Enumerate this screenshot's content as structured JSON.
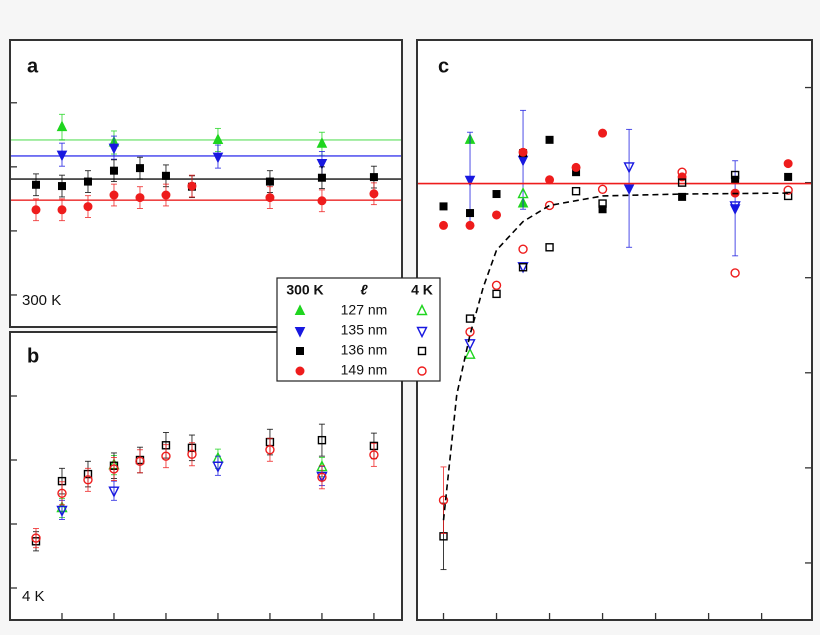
{
  "legend": {
    "header": [
      "300 K",
      "ℓ",
      "4 K"
    ],
    "rows": [
      {
        "label": "127 nm",
        "color": "#1fd51f",
        "marker": "triangle-up"
      },
      {
        "label": "135 nm",
        "color": "#1818e0",
        "marker": "triangle-down"
      },
      {
        "label": "136 nm",
        "color": "#000000",
        "marker": "square"
      },
      {
        "label": "149 nm",
        "color": "#ee1c1c",
        "marker": "circle"
      }
    ]
  },
  "chart_data": [
    {
      "type": "scatter",
      "title": "a",
      "annotation": "300 K",
      "xlim": [
        0,
        7.54
      ],
      "ylim": [
        0,
        4.48
      ],
      "yticks": [
        0.5,
        1.5,
        2.5,
        3.5
      ],
      "ytick_side": "left",
      "series": [
        {
          "color": "#1fd51f",
          "marker": "triangle-up",
          "filled": true,
          "level": 2.92,
          "level_color": "#8fe98f",
          "x": [
            1,
            2,
            4,
            6
          ],
          "values": [
            3.12,
            2.88,
            2.92,
            2.86
          ],
          "errors": [
            0.2,
            0.18,
            0.18,
            0.18
          ]
        },
        {
          "color": "#1818e0",
          "marker": "triangle-down",
          "filled": true,
          "level": 2.67,
          "level_color": "#5a5af0",
          "x": [
            1,
            2,
            4,
            6
          ],
          "values": [
            2.69,
            2.8,
            2.66,
            2.56
          ],
          "errors": [
            0.18,
            0.18,
            0.18,
            0.18
          ]
        },
        {
          "color": "#000000",
          "marker": "square",
          "filled": true,
          "level": 2.31,
          "level_color": "#333333",
          "x": [
            0.5,
            1,
            1.5,
            2,
            2.5,
            3,
            3.5,
            5,
            6,
            7
          ],
          "values": [
            2.22,
            2.2,
            2.27,
            2.44,
            2.48,
            2.36,
            2.19,
            2.27,
            2.33,
            2.34
          ],
          "errors": [
            0.17,
            0.17,
            0.17,
            0.17,
            0.17,
            0.17,
            0.17,
            0.17,
            0.17,
            0.17
          ]
        },
        {
          "color": "#ee1c1c",
          "marker": "circle",
          "filled": true,
          "level": 1.98,
          "level_color": "#ee4444",
          "x": [
            0.5,
            1,
            1.5,
            2,
            2.5,
            3,
            3.5,
            5,
            6,
            7
          ],
          "values": [
            1.83,
            1.83,
            1.88,
            2.06,
            2.02,
            2.06,
            2.2,
            2.02,
            1.97,
            2.08
          ],
          "errors": [
            0.17,
            0.17,
            0.17,
            0.17,
            0.17,
            0.17,
            0.17,
            0.17,
            0.17,
            0.17
          ]
        }
      ]
    },
    {
      "type": "scatter",
      "title": "b",
      "annotation": "4 K",
      "xlim": [
        0,
        7.54
      ],
      "ylim": [
        0,
        4.5
      ],
      "xticks": [
        1,
        2,
        3,
        4,
        5,
        6,
        7
      ],
      "yticks": [
        0.5,
        1.5,
        2.5,
        3.5
      ],
      "ytick_side": "left",
      "series": [
        {
          "color": "#1fd51f",
          "marker": "triangle-up",
          "filled": false,
          "x": [
            1,
            2,
            4,
            6
          ],
          "values": [
            1.75,
            2.42,
            2.52,
            2.39
          ],
          "errors": [
            0.15,
            0.15,
            0.15,
            0.15
          ]
        },
        {
          "color": "#1818e0",
          "marker": "triangle-down",
          "filled": false,
          "x": [
            1,
            2,
            4,
            6
          ],
          "values": [
            1.72,
            2.02,
            2.41,
            2.25
          ],
          "errors": [
            0.15,
            0.15,
            0.15,
            0.15
          ]
        },
        {
          "color": "#000000",
          "marker": "square",
          "filled": false,
          "x": [
            0.5,
            1,
            1.5,
            2,
            2.5,
            3,
            3.5,
            5,
            6,
            7
          ],
          "values": [
            1.23,
            2.17,
            2.28,
            2.41,
            2.5,
            2.73,
            2.69,
            2.78,
            2.81,
            2.72
          ],
          "errors": [
            0.15,
            0.2,
            0.2,
            0.2,
            0.2,
            0.2,
            0.2,
            0.2,
            0.25,
            0.2
          ]
        },
        {
          "color": "#ee1c1c",
          "marker": "circle",
          "filled": false,
          "x": [
            0.5,
            1,
            1.5,
            2,
            2.5,
            3,
            3.5,
            5,
            6,
            7
          ],
          "values": [
            1.28,
            1.98,
            2.19,
            2.36,
            2.48,
            2.56,
            2.59,
            2.66,
            2.23,
            2.58
          ],
          "errors": [
            0.15,
            0.18,
            0.18,
            0.18,
            0.18,
            0.18,
            0.18,
            0.18,
            0.18,
            0.18
          ]
        }
      ]
    },
    {
      "type": "scatter",
      "title": "c",
      "xlim": [
        0,
        7.45
      ],
      "ylim": [
        -0.1,
        6.0
      ],
      "xticks": [
        0.5,
        1.5,
        2.5,
        3.5,
        4.5,
        5.5,
        6.5
      ],
      "yticks": [
        0.5,
        1.5,
        2.5,
        3.5,
        4.5,
        5.5
      ],
      "ytick_side": "right",
      "series": [
        {
          "color": "#1fd51f",
          "marker": "triangle-up",
          "filled": true,
          "x": [
            1,
            2
          ],
          "values": [
            4.95,
            4.28
          ],
          "errors": [
            null,
            null
          ]
        },
        {
          "color": "#1818e0",
          "marker": "triangle-down",
          "filled": true,
          "x": [
            1,
            2,
            4,
            6
          ],
          "values": [
            4.53,
            4.74,
            4.44,
            4.23
          ],
          "errors": [
            0.5,
            0.52,
            0.62,
            0.5
          ]
        },
        {
          "color": "#000000",
          "marker": "square",
          "filled": true,
          "x": [
            0.5,
            1,
            1.5,
            2,
            2.5,
            3,
            3.5,
            5,
            6,
            7
          ],
          "values": [
            4.25,
            4.18,
            4.38,
            4.81,
            4.95,
            4.61,
            4.22,
            4.35,
            4.53,
            4.56
          ],
          "errors": [
            null,
            null,
            null,
            null,
            null,
            null,
            null,
            null,
            null,
            null
          ]
        },
        {
          "color": "#ee1c1c",
          "marker": "circle",
          "filled": true,
          "level": 4.49,
          "level_color": "#ee1c1c",
          "x": [
            0.5,
            1,
            1.5,
            2,
            2.5,
            3,
            3.5,
            5,
            6,
            7
          ],
          "values": [
            4.05,
            4.05,
            4.16,
            4.82,
            4.53,
            4.66,
            5.02,
            4.56,
            4.39,
            4.7
          ],
          "errors": [
            null,
            null,
            null,
            null,
            null,
            null,
            null,
            null,
            null,
            null
          ]
        },
        {
          "color": "#1fd51f",
          "marker": "triangle-up",
          "filled": false,
          "x": [
            1,
            2
          ],
          "values": [
            2.69,
            4.38
          ],
          "errors": [
            null,
            null
          ]
        },
        {
          "color": "#1818e0",
          "marker": "triangle-down",
          "filled": false,
          "x": [
            1,
            2,
            4,
            6
          ],
          "values": [
            2.81,
            3.62,
            4.67,
            4.26
          ],
          "errors": [
            null,
            null,
            null,
            null
          ]
        },
        {
          "color": "#000000",
          "marker": "square",
          "filled": false,
          "x": [
            0.5,
            1,
            1.5,
            2,
            2.5,
            3,
            3.5,
            5,
            6,
            7
          ],
          "values": [
            0.78,
            3.07,
            3.33,
            3.61,
            3.82,
            4.41,
            4.28,
            4.5,
            4.58,
            4.36
          ],
          "errors": [
            0.35,
            null,
            null,
            null,
            null,
            null,
            null,
            null,
            null,
            null
          ]
        },
        {
          "color": "#ee1c1c",
          "marker": "circle",
          "filled": false,
          "x": [
            0.5,
            1,
            1.5,
            2,
            2.5,
            3.5,
            5,
            6,
            7
          ],
          "values": [
            1.16,
            2.93,
            3.42,
            3.8,
            4.26,
            4.43,
            4.61,
            3.55,
            4.42
          ],
          "errors": [
            0.35,
            null,
            null,
            null,
            null,
            null,
            null,
            null,
            null
          ]
        },
        {
          "color": "#000000",
          "marker": "none",
          "line_style": "dashed",
          "x": [
            0.5,
            0.75,
            1,
            1.25,
            1.5,
            2,
            2.5,
            3.5,
            5,
            7
          ],
          "values": [
            0.95,
            2.27,
            2.9,
            3.4,
            3.79,
            4.09,
            4.26,
            4.36,
            4.38,
            4.39
          ]
        }
      ]
    }
  ]
}
